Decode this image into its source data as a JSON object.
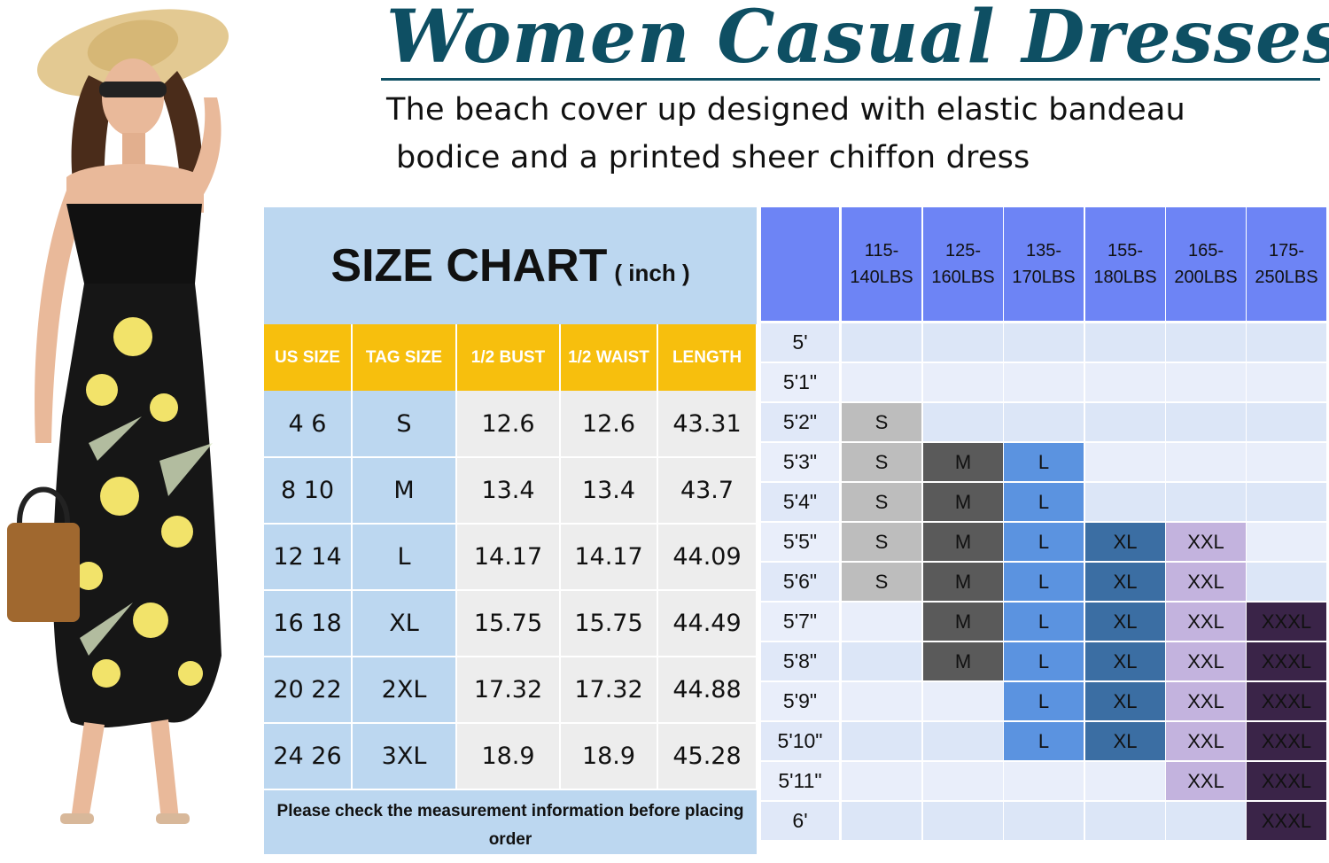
{
  "title": "Women Casual Dresses",
  "subtitle_line1": "The beach cover up designed with elastic bandeau",
  "subtitle_line2": "bodice and a printed sheer chiffon dress",
  "colors": {
    "title": "#0e4f63",
    "card_blue": "#bcd7f0",
    "header_yellow": "#f7bf0d",
    "grid_header": "#6d84f5",
    "size_S": "#bdbdbd",
    "size_M": "#5a5a5a",
    "size_L": "#5b93e0",
    "size_XL": "#3b6ea3",
    "size_XXL": "#c3b3de",
    "size_XXXL": "#3a2448"
  },
  "size_chart": {
    "heading": "SIZE CHART",
    "unit": "( inch )",
    "columns": [
      "US SIZE",
      "TAG SIZE",
      "1/2 BUST",
      "1/2 WAIST",
      "LENGTH"
    ],
    "rows": [
      {
        "us": "4   6",
        "tag": "S",
        "bust": "12.6",
        "waist": "12.6",
        "length": "43.31"
      },
      {
        "us": "8  10",
        "tag": "M",
        "bust": "13.4",
        "waist": "13.4",
        "length": "43.7"
      },
      {
        "us": "12 14",
        "tag": "L",
        "bust": "14.17",
        "waist": "14.17",
        "length": "44.09"
      },
      {
        "us": "16 18",
        "tag": "XL",
        "bust": "15.75",
        "waist": "15.75",
        "length": "44.49"
      },
      {
        "us": "20 22",
        "tag": "2XL",
        "bust": "17.32",
        "waist": "17.32",
        "length": "44.88"
      },
      {
        "us": "24 26",
        "tag": "3XL",
        "bust": "18.9",
        "waist": "18.9",
        "length": "45.28"
      }
    ],
    "note": "Please check the measurement information before placing order"
  },
  "weight_grid": {
    "weights": [
      "115-\n140LBS",
      "125-\n160LBS",
      "135-\n170LBS",
      "155-\n180LBS",
      "165-\n200LBS",
      "175-\n250LBS"
    ],
    "heights": [
      "5'",
      "5'1\"",
      "5'2\"",
      "5'3\"",
      "5'4\"",
      "5'5\"",
      "5'6\"",
      "5'7\"",
      "5'8\"",
      "5'9\"",
      "5'10\"",
      "5'11\"",
      "6'"
    ],
    "cells": [
      [
        "",
        "",
        "",
        "",
        "",
        ""
      ],
      [
        "",
        "",
        "",
        "",
        "",
        ""
      ],
      [
        "S",
        "",
        "",
        "",
        "",
        ""
      ],
      [
        "S",
        "M",
        "L",
        "",
        "",
        ""
      ],
      [
        "S",
        "M",
        "L",
        "",
        "",
        ""
      ],
      [
        "S",
        "M",
        "L",
        "XL",
        "XXL",
        ""
      ],
      [
        "S",
        "M",
        "L",
        "XL",
        "XXL",
        ""
      ],
      [
        "",
        "M",
        "L",
        "XL",
        "XXL",
        "XXXL"
      ],
      [
        "",
        "M",
        "L",
        "XL",
        "XXL",
        "XXXL"
      ],
      [
        "",
        "",
        "L",
        "XL",
        "XXL",
        "XXXL"
      ],
      [
        "",
        "",
        "L",
        "XL",
        "XXL",
        "XXXL"
      ],
      [
        "",
        "",
        "",
        "",
        "XXL",
        "XXXL"
      ],
      [
        "",
        "",
        "",
        "",
        "",
        "XXXL"
      ]
    ]
  }
}
